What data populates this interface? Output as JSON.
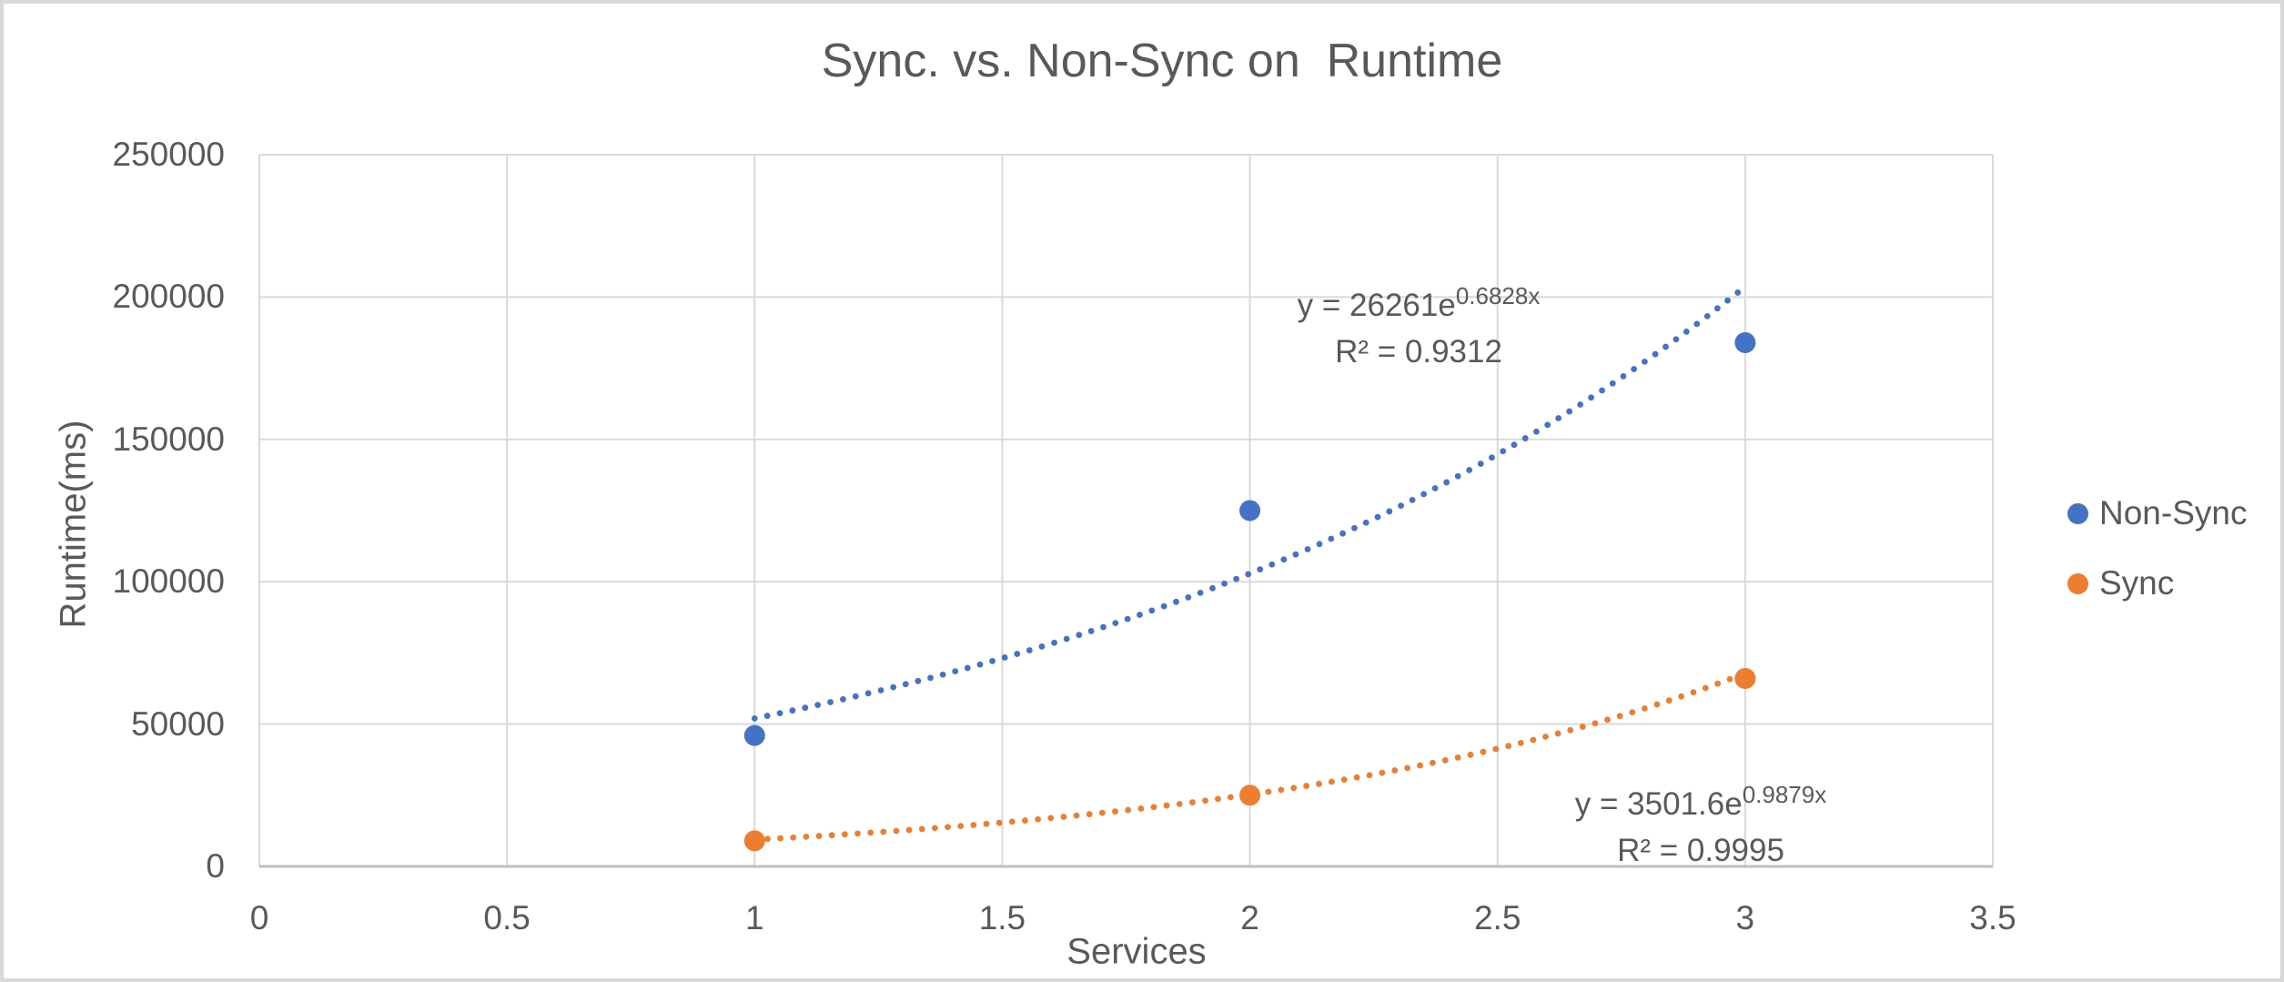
{
  "title": "Sync. vs. Non-Sync on  Runtime",
  "colors": {
    "non_sync": "#4472C4",
    "sync": "#ED7D31",
    "text": "#595959",
    "gridline": "#D9D9D9",
    "axis_line": "#BFBFBF",
    "frame_border": "#D8D8D8",
    "background": "#FFFFFF"
  },
  "chart_data": {
    "type": "scatter",
    "title": "Sync. vs. Non-Sync on  Runtime",
    "xlabel": "Services",
    "ylabel": "Runtime(ms)",
    "xlim": [
      0,
      3.5
    ],
    "ylim": [
      0,
      250000
    ],
    "x_ticks": [
      0,
      0.5,
      1,
      1.5,
      2,
      2.5,
      3,
      3.5
    ],
    "x_tick_labels": [
      "0",
      "0.5",
      "1",
      "1.5",
      "2",
      "2.5",
      "3",
      "3.5"
    ],
    "y_ticks": [
      0,
      50000,
      100000,
      150000,
      200000,
      250000
    ],
    "y_tick_labels": [
      "0",
      "50000",
      "100000",
      "150000",
      "200000",
      "250000"
    ],
    "grid": true,
    "legend_position": "right",
    "series": [
      {
        "name": "Non-Sync",
        "color": "#4472C4",
        "marker": "circle",
        "x": [
          1,
          2,
          3
        ],
        "y": [
          46000,
          125000,
          184000
        ],
        "trendline": {
          "type": "exponential",
          "style": "dotted",
          "a": 26261,
          "b": 0.6828,
          "x_start": 1,
          "x_end": 3.0,
          "equation_prefix": "y = 26261e",
          "equation_exponent": "0.6828x",
          "r_squared_label": "R² = 0.9312"
        }
      },
      {
        "name": "Sync",
        "color": "#ED7D31",
        "marker": "circle",
        "x": [
          1,
          2,
          3
        ],
        "y": [
          9000,
          25000,
          66000
        ],
        "trendline": {
          "type": "exponential",
          "style": "dotted",
          "a": 3501.6,
          "b": 0.9879,
          "x_start": 1,
          "x_end": 3.0,
          "equation_prefix": "y = 3501.6e",
          "equation_exponent": "0.9879x",
          "r_squared_label": "R² = 0.9995"
        }
      }
    ]
  },
  "legend": {
    "items": [
      {
        "label": "Non-Sync",
        "color": "#4472C4"
      },
      {
        "label": "Sync",
        "color": "#ED7D31"
      }
    ]
  }
}
